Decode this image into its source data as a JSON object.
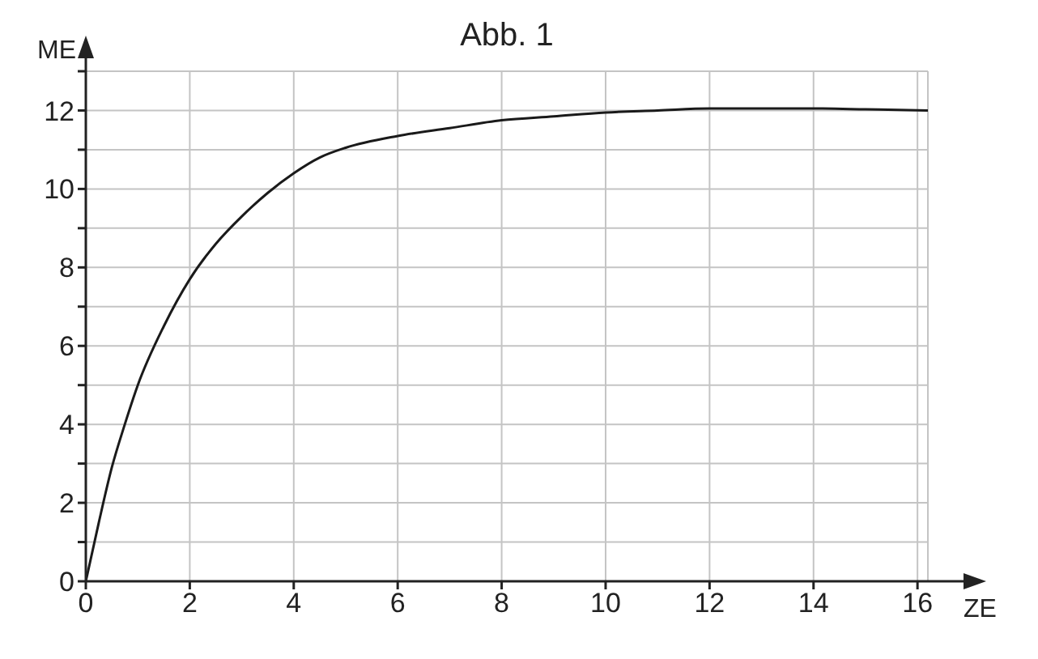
{
  "chart_data": {
    "type": "line",
    "title": "Abb. 1",
    "xlabel": "ZE",
    "ylabel": "ME",
    "xlim": [
      0,
      16.2
    ],
    "ylim": [
      0,
      13
    ],
    "xticks": [
      0,
      2,
      4,
      6,
      8,
      10,
      12,
      14,
      16
    ],
    "yticks": [
      0,
      {
        "value": 1,
        "label": null
      },
      2,
      {
        "value": 3,
        "label": null
      },
      4,
      {
        "value": 5,
        "label": null
      },
      6,
      {
        "value": 7,
        "label": null
      },
      8,
      {
        "value": 9,
        "label": null
      },
      10,
      {
        "value": 11,
        "label": null
      },
      12,
      {
        "value": 13,
        "label": null
      }
    ],
    "grid": true,
    "legend": false,
    "marker": "none",
    "line_style": "solid",
    "series": [
      {
        "color": "#1a1a1a",
        "x": [
          0,
          0.25,
          0.5,
          0.75,
          1,
          1.5,
          2,
          2.5,
          3,
          3.5,
          4,
          4.5,
          5,
          6,
          7,
          8,
          9,
          10,
          11,
          12,
          13,
          14,
          15,
          16.2
        ],
        "values": [
          0,
          1.5,
          2.9,
          4,
          5,
          6.5,
          7.7,
          8.6,
          9.3,
          9.9,
          10.4,
          10.8,
          11.05,
          11.35,
          11.55,
          11.75,
          11.85,
          11.95,
          12,
          12.05,
          12.05,
          12.05,
          12.03,
          12
        ]
      }
    ]
  }
}
